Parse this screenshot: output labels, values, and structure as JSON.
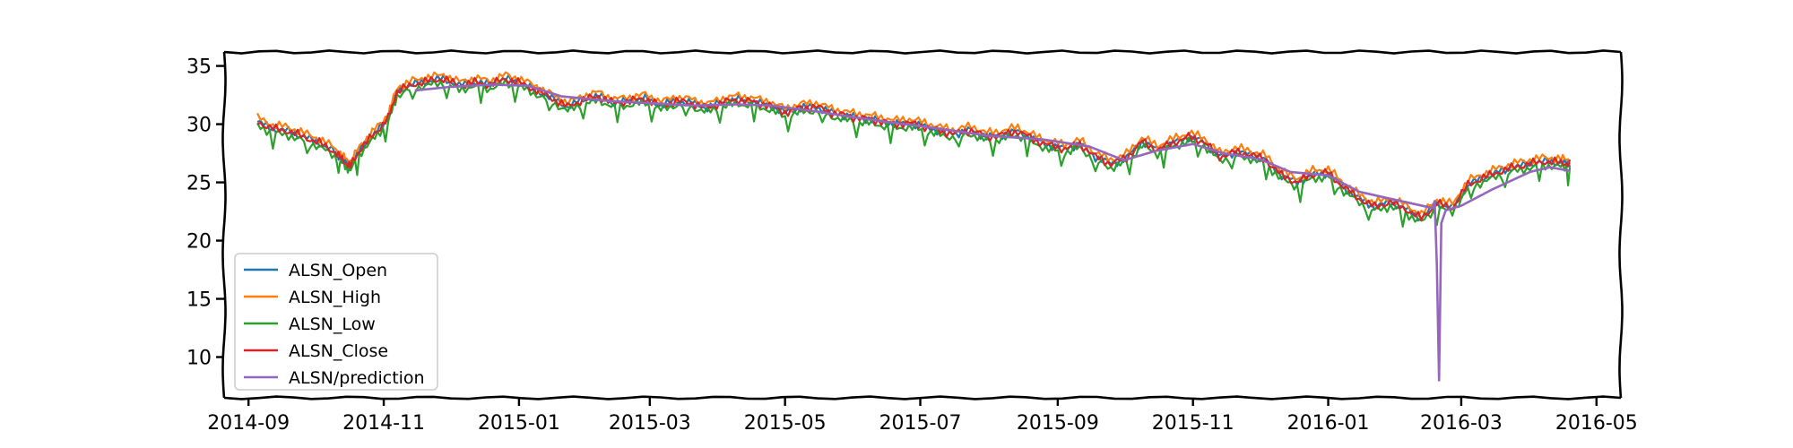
{
  "chart_data": {
    "type": "line",
    "title": "",
    "xlabel": "",
    "ylabel": "",
    "x_range": [
      "2014-08-21",
      "2016-05-12"
    ],
    "ylim": [
      6.5,
      36.2
    ],
    "x_ticks": [
      {
        "date": "2014-09-01",
        "label": "2014-09"
      },
      {
        "date": "2014-11-01",
        "label": "2014-11"
      },
      {
        "date": "2015-01-01",
        "label": "2015-01"
      },
      {
        "date": "2015-03-01",
        "label": "2015-03"
      },
      {
        "date": "2015-05-01",
        "label": "2015-05"
      },
      {
        "date": "2015-07-01",
        "label": "2015-07"
      },
      {
        "date": "2015-09-01",
        "label": "2015-09"
      },
      {
        "date": "2015-11-01",
        "label": "2015-11"
      },
      {
        "date": "2016-01-01",
        "label": "2016-01"
      },
      {
        "date": "2016-03-01",
        "label": "2016-03"
      },
      {
        "date": "2016-05-01",
        "label": "2016-05"
      }
    ],
    "y_ticks": [
      10,
      15,
      20,
      25,
      30,
      35
    ],
    "grid": false,
    "legend": {
      "position": "bottom-left"
    },
    "series": [
      {
        "name": "ALSN_Open",
        "color": "#1f77b4",
        "style": "ohlc",
        "offset": 0.0
      },
      {
        "name": "ALSN_High",
        "color": "#ff7f0e",
        "style": "ohlc",
        "offset": 0.35
      },
      {
        "name": "ALSN_Low",
        "color": "#2ca02c",
        "style": "ohlc",
        "offset": -0.35
      },
      {
        "name": "ALSN_Close",
        "color": "#d62728",
        "style": "ohlc",
        "offset": 0.0
      },
      {
        "name": "ALSN/prediction",
        "color": "#9467bd",
        "style": "smooth"
      }
    ],
    "price_points": [
      [
        "2014-09-05",
        30.2
      ],
      [
        "2014-09-12",
        29.6
      ],
      [
        "2014-09-19",
        29.4
      ],
      [
        "2014-09-26",
        28.9
      ],
      [
        "2014-10-03",
        28.4
      ],
      [
        "2014-10-10",
        27.6
      ],
      [
        "2014-10-14",
        26.8
      ],
      [
        "2014-10-17",
        26.4
      ],
      [
        "2014-10-22",
        28.0
      ],
      [
        "2014-10-28",
        29.2
      ],
      [
        "2014-11-03",
        30.5
      ],
      [
        "2014-11-07",
        32.8
      ],
      [
        "2014-11-14",
        33.4
      ],
      [
        "2014-11-21",
        33.7
      ],
      [
        "2014-11-28",
        33.9
      ],
      [
        "2014-12-05",
        33.3
      ],
      [
        "2014-12-12",
        33.6
      ],
      [
        "2014-12-19",
        33.4
      ],
      [
        "2014-12-26",
        33.9
      ],
      [
        "2015-01-02",
        33.5
      ],
      [
        "2015-01-09",
        32.9
      ],
      [
        "2015-01-16",
        32.2
      ],
      [
        "2015-01-23",
        31.5
      ],
      [
        "2015-01-30",
        32.1
      ],
      [
        "2015-02-06",
        32.4
      ],
      [
        "2015-02-13",
        31.8
      ],
      [
        "2015-02-20",
        32.0
      ],
      [
        "2015-02-27",
        32.2
      ],
      [
        "2015-03-06",
        31.6
      ],
      [
        "2015-03-13",
        32.0
      ],
      [
        "2015-03-20",
        31.8
      ],
      [
        "2015-03-27",
        31.4
      ],
      [
        "2015-04-03",
        31.9
      ],
      [
        "2015-04-10",
        32.1
      ],
      [
        "2015-04-17",
        31.9
      ],
      [
        "2015-04-24",
        31.6
      ],
      [
        "2015-05-01",
        31.0
      ],
      [
        "2015-05-08",
        31.4
      ],
      [
        "2015-05-15",
        31.5
      ],
      [
        "2015-05-22",
        31.0
      ],
      [
        "2015-05-29",
        30.7
      ],
      [
        "2015-06-05",
        30.5
      ],
      [
        "2015-06-12",
        30.3
      ],
      [
        "2015-06-19",
        30.0
      ],
      [
        "2015-06-26",
        30.1
      ],
      [
        "2015-07-03",
        29.8
      ],
      [
        "2015-07-10",
        29.4
      ],
      [
        "2015-07-17",
        29.2
      ],
      [
        "2015-07-24",
        29.5
      ],
      [
        "2015-07-31",
        28.9
      ],
      [
        "2015-08-07",
        29.1
      ],
      [
        "2015-08-14",
        29.4
      ],
      [
        "2015-08-21",
        28.7
      ],
      [
        "2015-08-28",
        28.2
      ],
      [
        "2015-09-04",
        27.9
      ],
      [
        "2015-09-11",
        28.3
      ],
      [
        "2015-09-18",
        27.2
      ],
      [
        "2015-09-25",
        26.6
      ],
      [
        "2015-10-02",
        27.1
      ],
      [
        "2015-10-09",
        28.5
      ],
      [
        "2015-10-16",
        27.8
      ],
      [
        "2015-10-23",
        28.4
      ],
      [
        "2015-10-30",
        28.9
      ],
      [
        "2015-11-06",
        28.5
      ],
      [
        "2015-11-13",
        27.2
      ],
      [
        "2015-11-20",
        27.6
      ],
      [
        "2015-11-27",
        27.4
      ],
      [
        "2015-12-04",
        26.9
      ],
      [
        "2015-12-11",
        25.6
      ],
      [
        "2015-12-18",
        25.0
      ],
      [
        "2015-12-25",
        25.7
      ],
      [
        "2016-01-01",
        25.8
      ],
      [
        "2016-01-08",
        24.6
      ],
      [
        "2016-01-15",
        23.6
      ],
      [
        "2016-01-22",
        22.9
      ],
      [
        "2016-01-29",
        23.3
      ],
      [
        "2016-02-05",
        22.7
      ],
      [
        "2016-02-12",
        21.9
      ],
      [
        "2016-02-19",
        23.2
      ],
      [
        "2016-02-26",
        22.8
      ],
      [
        "2016-03-04",
        24.8
      ],
      [
        "2016-03-11",
        25.4
      ],
      [
        "2016-03-18",
        25.9
      ],
      [
        "2016-03-25",
        26.3
      ],
      [
        "2016-04-01",
        26.6
      ],
      [
        "2016-04-08",
        26.8
      ],
      [
        "2016-04-15",
        26.7
      ],
      [
        "2016-04-19",
        26.6
      ]
    ],
    "prediction_points": [
      [
        "2014-11-15",
        32.9
      ],
      [
        "2014-12-01",
        33.2
      ],
      [
        "2014-12-20",
        33.4
      ],
      [
        "2015-01-05",
        33.3
      ],
      [
        "2015-01-20",
        32.4
      ],
      [
        "2015-02-10",
        32.0
      ],
      [
        "2015-03-01",
        31.8
      ],
      [
        "2015-03-20",
        31.6
      ],
      [
        "2015-04-10",
        31.7
      ],
      [
        "2015-04-25",
        31.6
      ],
      [
        "2015-05-15",
        31.1
      ],
      [
        "2015-06-01",
        30.6
      ],
      [
        "2015-06-20",
        30.1
      ],
      [
        "2015-07-10",
        29.6
      ],
      [
        "2015-08-01",
        29.0
      ],
      [
        "2015-08-25",
        28.7
      ],
      [
        "2015-09-15",
        28.1
      ],
      [
        "2015-10-01",
        26.9
      ],
      [
        "2015-10-15",
        27.7
      ],
      [
        "2015-11-01",
        28.3
      ],
      [
        "2015-11-15",
        27.5
      ],
      [
        "2015-12-01",
        27.0
      ],
      [
        "2015-12-15",
        25.9
      ],
      [
        "2016-01-01",
        25.6
      ],
      [
        "2016-01-15",
        24.2
      ],
      [
        "2016-01-29",
        23.6
      ],
      [
        "2016-02-10",
        23.1
      ],
      [
        "2016-02-17",
        22.8
      ],
      [
        "2016-02-18",
        23.4
      ],
      [
        "2016-02-19",
        18.0
      ],
      [
        "2016-02-20",
        8.0
      ],
      [
        "2016-02-21",
        21.5
      ],
      [
        "2016-02-23",
        22.6
      ],
      [
        "2016-03-01",
        23.0
      ],
      [
        "2016-03-15",
        24.4
      ],
      [
        "2016-04-01",
        25.9
      ],
      [
        "2016-04-10",
        26.3
      ],
      [
        "2016-04-19",
        26.0
      ]
    ]
  }
}
